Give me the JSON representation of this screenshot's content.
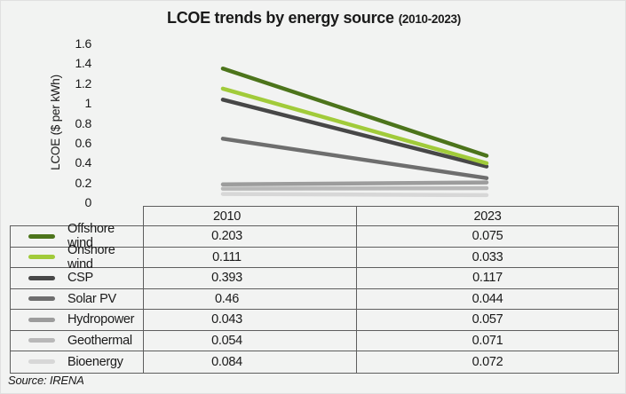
{
  "title": {
    "main": "LCOE trends by energy source",
    "range": "(2010-2023)"
  },
  "source": "Source: IRENA",
  "colors": {
    "background": "#F2F3F2",
    "table_border": "#5E5E5E",
    "text": "#1A1A1A"
  },
  "chart_data": {
    "type": "line",
    "stacked": true,
    "title": "LCOE trends by energy source (2010-2023)",
    "ylabel": "LCOE ($ per kWh)",
    "ylim": [
      0,
      1.6
    ],
    "yticks": [
      {
        "v": 1.6,
        "label": "1.6"
      },
      {
        "v": 1.4,
        "label": "1.4"
      },
      {
        "v": 1.2,
        "label": "1.2"
      },
      {
        "v": 1.0,
        "label": "1"
      },
      {
        "v": 0.8,
        "label": "0.8"
      },
      {
        "v": 0.6,
        "label": "0.6"
      },
      {
        "v": 0.4,
        "label": "0.4"
      },
      {
        "v": 0.2,
        "label": "0.2"
      },
      {
        "v": 0.0,
        "label": "0"
      }
    ],
    "categories": [
      "2010",
      "2023"
    ],
    "grid": false,
    "legend_position": "table-left-column",
    "series": [
      {
        "name": "Offshore wind",
        "color": "#4C741B",
        "values": [
          0.203,
          0.075
        ]
      },
      {
        "name": "Onshore wind",
        "color": "#A1CB3A",
        "values": [
          0.111,
          0.033
        ]
      },
      {
        "name": "CSP",
        "color": "#474747",
        "values": [
          0.393,
          0.117
        ]
      },
      {
        "name": "Solar PV",
        "color": "#6E6E6E",
        "values": [
          0.46,
          0.044
        ]
      },
      {
        "name": "Hydropower",
        "color": "#9C9C9C",
        "values": [
          0.043,
          0.057
        ]
      },
      {
        "name": "Geothermal",
        "color": "#B8B8B8",
        "values": [
          0.054,
          0.071
        ]
      },
      {
        "name": "Bioenergy",
        "color": "#D7D7D7",
        "values": [
          0.084,
          0.072
        ]
      }
    ]
  },
  "table": {
    "columns": [
      "2010",
      "2023"
    ],
    "rows": [
      {
        "label": "Offshore wind",
        "values": [
          "0.203",
          "0.075"
        ]
      },
      {
        "label": "Onshore wind",
        "values": [
          "0.111",
          "0.033"
        ]
      },
      {
        "label": "CSP",
        "values": [
          "0.393",
          "0.117"
        ]
      },
      {
        "label": "Solar PV",
        "values": [
          "0.46",
          "0.044"
        ]
      },
      {
        "label": "Hydropower",
        "values": [
          "0.043",
          "0.057"
        ]
      },
      {
        "label": "Geothermal",
        "values": [
          "0.054",
          "0.071"
        ]
      },
      {
        "label": "Bioenergy",
        "values": [
          "0.084",
          "0.072"
        ]
      }
    ]
  }
}
